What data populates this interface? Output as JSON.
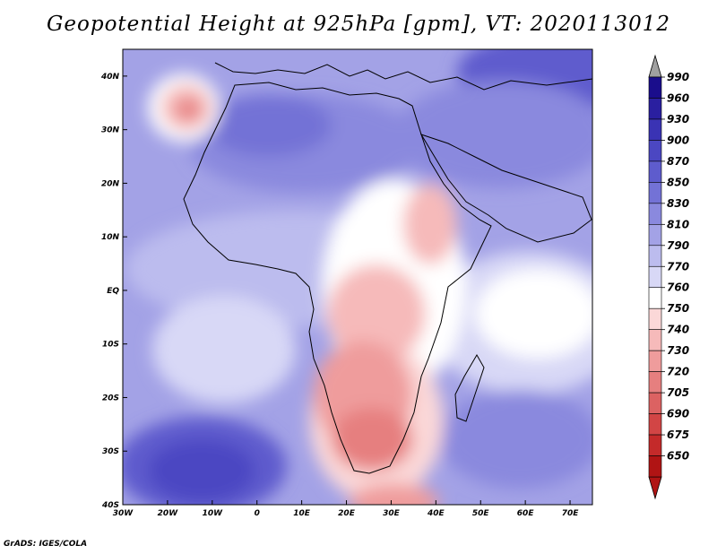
{
  "title": "Geopotential Height at 925hPa [gpm], VT: 2020113012",
  "footer": "GrADS: IGES/COLA",
  "map": {
    "lon_ticks": [
      "30W",
      "20W",
      "10W",
      "0",
      "10E",
      "20E",
      "30E",
      "40E",
      "50E",
      "60E",
      "70E"
    ],
    "lat_ticks": [
      "40N",
      "30N",
      "20N",
      "10N",
      "EQ",
      "10S",
      "20S",
      "30S",
      "40S"
    ],
    "lon_range": [
      -30,
      75
    ],
    "lat_range": [
      -40,
      45
    ]
  },
  "colorbar": {
    "labels": [
      "990",
      "960",
      "930",
      "900",
      "870",
      "850",
      "830",
      "810",
      "790",
      "770",
      "760",
      "750",
      "740",
      "730",
      "720",
      "705",
      "690",
      "675",
      "650"
    ],
    "colors": [
      "#1a0d8c",
      "#2a1fa0",
      "#3a33b4",
      "#4b47c2",
      "#5e5ccd",
      "#7372d6",
      "#8a89de",
      "#a3a2e6",
      "#bcbcee",
      "#d8d8f6",
      "#ffffff",
      "#fbd8d8",
      "#f6baba",
      "#ef9c9c",
      "#e67f7f",
      "#dc6262",
      "#d24545",
      "#c42a2a",
      "#b01414"
    ],
    "arrow_top_color": "#a0a0a0",
    "arrow_bottom_color": "#b01414"
  }
}
